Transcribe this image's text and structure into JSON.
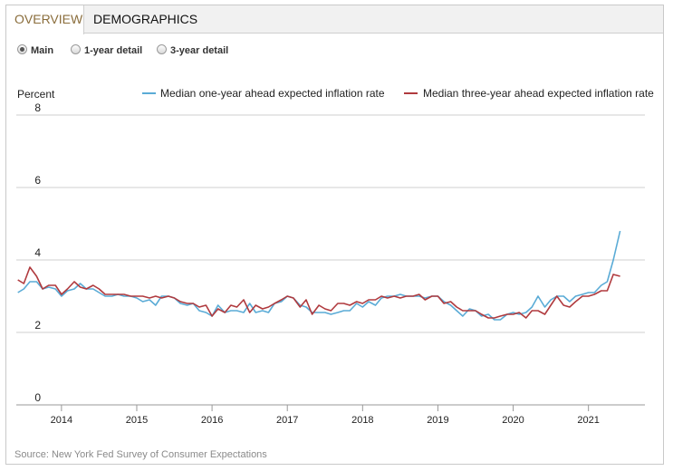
{
  "tabs": [
    {
      "label": "OVERVIEW",
      "active": true
    },
    {
      "label": "DEMOGRAPHICS",
      "active": false
    }
  ],
  "view_options": [
    {
      "label": "Main",
      "selected": true
    },
    {
      "label": "1-year detail",
      "selected": false
    },
    {
      "label": "3-year detail",
      "selected": false
    }
  ],
  "source": "Source: New York Fed Survey of Consumer Expectations",
  "colors": {
    "one_year": "#5aabd6",
    "three_year": "#b03a3e",
    "grid": "#cfcfcf"
  },
  "chart_data": {
    "type": "line",
    "ylabel": "Percent",
    "ylim": [
      0,
      8
    ],
    "yticks": [
      0,
      2,
      4,
      6,
      8
    ],
    "xlim": [
      2013.4,
      2021.75
    ],
    "xticks": [
      2014,
      2015,
      2016,
      2017,
      2018,
      2019,
      2020,
      2021
    ],
    "grid": true,
    "legend": "top-right",
    "series": [
      {
        "name": "Median one-year ahead expected inflation rate",
        "color": "#5aabd6",
        "x": [
          2013.42,
          2013.5,
          2013.58,
          2013.67,
          2013.75,
          2013.83,
          2013.92,
          2014.0,
          2014.08,
          2014.17,
          2014.25,
          2014.33,
          2014.42,
          2014.5,
          2014.58,
          2014.67,
          2014.75,
          2014.83,
          2014.92,
          2015.0,
          2015.08,
          2015.17,
          2015.25,
          2015.33,
          2015.42,
          2015.5,
          2015.58,
          2015.67,
          2015.75,
          2015.83,
          2015.92,
          2016.0,
          2016.08,
          2016.17,
          2016.25,
          2016.33,
          2016.42,
          2016.5,
          2016.58,
          2016.67,
          2016.75,
          2016.83,
          2016.92,
          2017.0,
          2017.08,
          2017.17,
          2017.25,
          2017.33,
          2017.42,
          2017.5,
          2017.58,
          2017.67,
          2017.75,
          2017.83,
          2017.92,
          2018.0,
          2018.08,
          2018.17,
          2018.25,
          2018.33,
          2018.42,
          2018.5,
          2018.58,
          2018.67,
          2018.75,
          2018.83,
          2018.92,
          2019.0,
          2019.08,
          2019.17,
          2019.25,
          2019.33,
          2019.42,
          2019.5,
          2019.58,
          2019.67,
          2019.75,
          2019.83,
          2019.92,
          2020.0,
          2020.08,
          2020.17,
          2020.25,
          2020.33,
          2020.42,
          2020.5,
          2020.58,
          2020.67,
          2020.75,
          2020.83,
          2020.92,
          2021.0,
          2021.08,
          2021.17,
          2021.25,
          2021.33,
          2021.42
        ],
        "y": [
          3.1,
          3.2,
          3.4,
          3.4,
          3.2,
          3.25,
          3.2,
          3.0,
          3.15,
          3.2,
          3.35,
          3.2,
          3.2,
          3.1,
          3.0,
          3.0,
          3.05,
          3.0,
          3.0,
          2.95,
          2.85,
          2.9,
          2.75,
          3.0,
          3.0,
          2.95,
          2.8,
          2.75,
          2.8,
          2.6,
          2.55,
          2.45,
          2.75,
          2.55,
          2.6,
          2.6,
          2.55,
          2.8,
          2.55,
          2.6,
          2.55,
          2.8,
          2.85,
          3.0,
          2.95,
          2.75,
          2.7,
          2.55,
          2.55,
          2.55,
          2.5,
          2.55,
          2.6,
          2.6,
          2.8,
          2.7,
          2.85,
          2.75,
          2.95,
          3.0,
          3.0,
          3.05,
          3.0,
          3.0,
          3.0,
          2.95,
          3.0,
          3.0,
          2.85,
          2.75,
          2.6,
          2.45,
          2.65,
          2.6,
          2.45,
          2.5,
          2.35,
          2.35,
          2.5,
          2.55,
          2.5,
          2.55,
          2.7,
          3.0,
          2.7,
          2.9,
          3.0,
          3.0,
          2.85,
          3.0,
          3.05,
          3.1,
          3.1,
          3.3,
          3.4,
          4.0,
          4.8
        ]
      },
      {
        "name": "Median three-year ahead expected inflation rate",
        "color": "#b03a3e",
        "x": [
          2013.42,
          2013.5,
          2013.58,
          2013.67,
          2013.75,
          2013.83,
          2013.92,
          2014.0,
          2014.08,
          2014.17,
          2014.25,
          2014.33,
          2014.42,
          2014.5,
          2014.58,
          2014.67,
          2014.75,
          2014.83,
          2014.92,
          2015.0,
          2015.08,
          2015.17,
          2015.25,
          2015.33,
          2015.42,
          2015.5,
          2015.58,
          2015.67,
          2015.75,
          2015.83,
          2015.92,
          2016.0,
          2016.08,
          2016.17,
          2016.25,
          2016.33,
          2016.42,
          2016.5,
          2016.58,
          2016.67,
          2016.75,
          2016.83,
          2016.92,
          2017.0,
          2017.08,
          2017.17,
          2017.25,
          2017.33,
          2017.42,
          2017.5,
          2017.58,
          2017.67,
          2017.75,
          2017.83,
          2017.92,
          2018.0,
          2018.08,
          2018.17,
          2018.25,
          2018.33,
          2018.42,
          2018.5,
          2018.58,
          2018.67,
          2018.75,
          2018.83,
          2018.92,
          2019.0,
          2019.08,
          2019.17,
          2019.25,
          2019.33,
          2019.42,
          2019.5,
          2019.58,
          2019.67,
          2019.75,
          2019.83,
          2019.92,
          2020.0,
          2020.08,
          2020.17,
          2020.25,
          2020.33,
          2020.42,
          2020.5,
          2020.58,
          2020.67,
          2020.75,
          2020.83,
          2020.92,
          2021.0,
          2021.08,
          2021.17,
          2021.25,
          2021.33,
          2021.42
        ],
        "y": [
          3.45,
          3.35,
          3.8,
          3.55,
          3.2,
          3.3,
          3.3,
          3.05,
          3.2,
          3.4,
          3.25,
          3.2,
          3.3,
          3.2,
          3.05,
          3.05,
          3.05,
          3.05,
          3.0,
          3.0,
          3.0,
          2.95,
          3.0,
          2.95,
          3.0,
          2.95,
          2.85,
          2.8,
          2.8,
          2.7,
          2.75,
          2.45,
          2.65,
          2.55,
          2.75,
          2.7,
          2.9,
          2.55,
          2.75,
          2.65,
          2.7,
          2.8,
          2.9,
          3.0,
          2.95,
          2.7,
          2.9,
          2.5,
          2.75,
          2.65,
          2.6,
          2.8,
          2.8,
          2.75,
          2.85,
          2.8,
          2.9,
          2.9,
          3.0,
          2.95,
          3.0,
          2.95,
          3.0,
          3.0,
          3.05,
          2.9,
          3.0,
          3.0,
          2.8,
          2.85,
          2.7,
          2.6,
          2.6,
          2.6,
          2.5,
          2.4,
          2.4,
          2.45,
          2.5,
          2.5,
          2.55,
          2.4,
          2.6,
          2.6,
          2.5,
          2.75,
          3.0,
          2.75,
          2.7,
          2.85,
          3.0,
          3.0,
          3.05,
          3.15,
          3.15,
          3.6,
          3.55
        ]
      }
    ]
  }
}
